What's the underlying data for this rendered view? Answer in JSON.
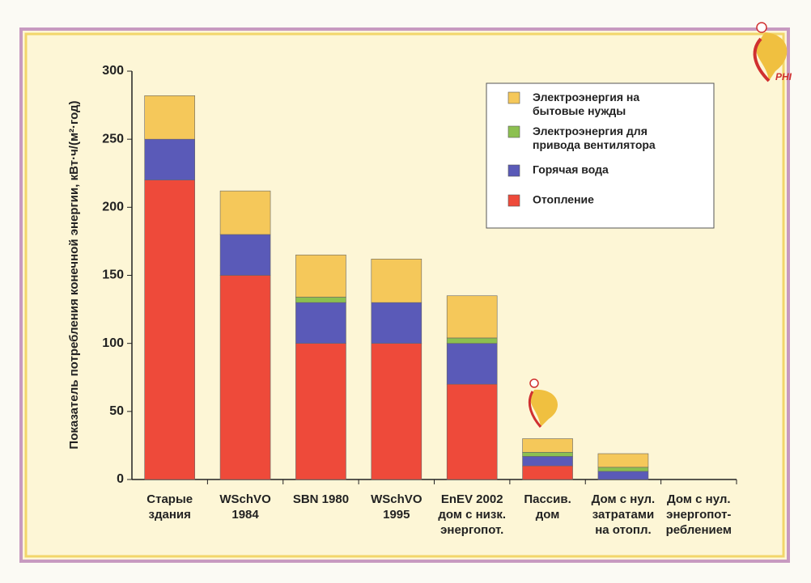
{
  "chart_data": {
    "type": "stacked_bar",
    "y_label": "Показатель потребления конечной энергии, кВт·ч/(м²·год)",
    "logo": "PHI",
    "categories": [
      [
        "Старые",
        "здания"
      ],
      [
        "WSchVO",
        "1984"
      ],
      [
        "SBN 1980"
      ],
      [
        "WSchVO",
        "1995"
      ],
      [
        "EnEV 2002",
        "дом с низк.",
        "энергопот."
      ],
      [
        "Пассив.",
        "дом"
      ],
      [
        "Дом с нул.",
        "затратами",
        "на отопл."
      ],
      [
        "Дом с нул.",
        "энергопот-",
        "реблением"
      ]
    ],
    "series": [
      {
        "name": "Отопление",
        "color": "#ee4a3a",
        "values": [
          220,
          150,
          100,
          100,
          70,
          10,
          0,
          0
        ]
      },
      {
        "name": "Горячая вода",
        "color": "#5a5ab8",
        "values": [
          30,
          30,
          30,
          30,
          30,
          7,
          6,
          0
        ]
      },
      {
        "name": "Электроэнергия для\nпривода вентилятора",
        "color": "#8cc050",
        "values": [
          0,
          0,
          4,
          0,
          4,
          3,
          3,
          0
        ]
      },
      {
        "name": "Электроэнергия на\nбытовые нужды",
        "color": "#f5c85a",
        "values": [
          32,
          32,
          31,
          32,
          31,
          10,
          10,
          0
        ]
      }
    ],
    "ylim": [
      0,
      300
    ],
    "yticks": [
      0,
      50,
      100,
      150,
      200,
      250,
      300
    ],
    "grid": false
  }
}
